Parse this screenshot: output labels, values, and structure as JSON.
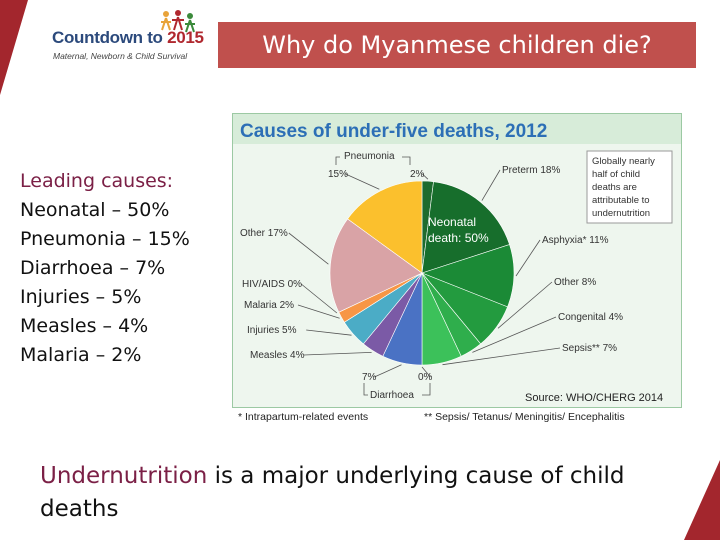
{
  "logo": {
    "name_part": "Countdown to ",
    "year_part": "2015",
    "tagline": "Maternal, Newborn & Child Survival"
  },
  "slide_title": "Why do Myanmese children die?",
  "leading": {
    "heading": "Leading causes:",
    "items": [
      "Neonatal – 50%",
      "Pneumonia – 15%",
      "Diarrhoea – 7%",
      "Injuries – 5%",
      "Measles – 4%",
      "Malaria – 2%"
    ]
  },
  "bottom": {
    "highlight": "Undernutrition",
    "rest": " is a major underlying cause of child deaths"
  },
  "chart_data": {
    "type": "pie",
    "title": "Causes of under-five deaths, 2012",
    "source": "Source: WHO/CHERG 2014",
    "note": "Globally nearly half of child deaths are attributable to undernutrition",
    "center_label": [
      "Neonatal",
      "death: 50%"
    ],
    "group_labels": {
      "pneumonia": "Pneumonia",
      "diarrhoea": "Diarrhoea"
    },
    "footnotes": [
      "* Intrapartum-related events",
      "** Sepsis/ Tetanus/ Meningitis/ Encephalitis"
    ],
    "slices": [
      {
        "name": "Pneumonia (neonatal)",
        "label": "2%",
        "value": 2,
        "color": "#1e6b2e"
      },
      {
        "name": "Preterm",
        "label": "Preterm 18%",
        "value": 18,
        "color": "#176e2c"
      },
      {
        "name": "Asphyxia*",
        "label": "Asphyxia* 11%",
        "value": 11,
        "color": "#1b8a36"
      },
      {
        "name": "Other (neonatal)",
        "label": "Other 8%",
        "value": 8,
        "color": "#239b3f"
      },
      {
        "name": "Congenital",
        "label": "Congenital 4%",
        "value": 4,
        "color": "#2fae4c"
      },
      {
        "name": "Sepsis**",
        "label": "Sepsis** 7%",
        "value": 7,
        "color": "#3cc15a"
      },
      {
        "name": "Diarrhoea (neonatal)",
        "label": "0%",
        "value": 0,
        "color": "#3cc15a"
      },
      {
        "name": "Diarrhoea",
        "label": "7%",
        "value": 7,
        "color": "#4a72c4"
      },
      {
        "name": "Measles",
        "label": "Measles 4%",
        "value": 4,
        "color": "#7b5aa6"
      },
      {
        "name": "Injuries",
        "label": "Injuries 5%",
        "value": 5,
        "color": "#4bacc6"
      },
      {
        "name": "Malaria",
        "label": "Malaria 2%",
        "value": 2,
        "color": "#f79646"
      },
      {
        "name": "HIV/AIDS",
        "label": "HIV/AIDS 0%",
        "value": 0,
        "color": "#c0504d"
      },
      {
        "name": "Other",
        "label": "Other 17%",
        "value": 17,
        "color": "#d9a3a6"
      },
      {
        "name": "Pneumonia",
        "label": "15%",
        "value": 15,
        "color": "#fbc02d"
      }
    ],
    "colors": {
      "title": "#2c6fb6",
      "title_band": "#d7ecd9",
      "panel": "#eef6ee"
    }
  }
}
